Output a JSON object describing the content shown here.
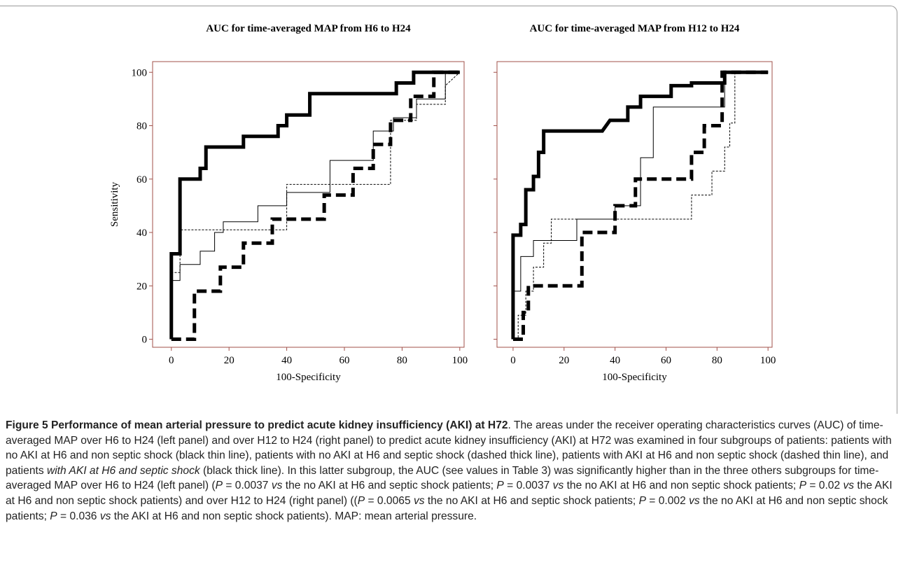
{
  "chart_data": [
    {
      "type": "line",
      "title": "AUC for time-averaged MAP from H6 to H24",
      "xlabel": "100-Specificity",
      "ylabel": "Sensitivity",
      "xlim": [
        -6.5,
        101.5
      ],
      "ylim": [
        -3,
        104
      ],
      "xticks": [
        0,
        20,
        40,
        60,
        80,
        100
      ],
      "yticks": [
        0,
        20,
        40,
        60,
        80,
        100
      ],
      "ytick_labels": true,
      "frame_color": "#a0504a",
      "series": [
        {
          "color": "#000000",
          "width": 5,
          "dash": false,
          "x": [
            0,
            0,
            3,
            3,
            10,
            10,
            12,
            12,
            25,
            25,
            37,
            37,
            40,
            40,
            48,
            48,
            78,
            78,
            84,
            84,
            100
          ],
          "values": [
            0,
            32,
            32,
            60,
            60,
            64,
            64,
            72,
            72,
            76,
            76,
            80,
            80,
            84,
            84,
            92,
            92,
            96,
            96,
            100,
            100
          ]
        },
        {
          "color": "#000000",
          "width": 1,
          "dash": false,
          "x": [
            0,
            0,
            3,
            3,
            10,
            10,
            15,
            15,
            18,
            18,
            30,
            30,
            40,
            40,
            55,
            55,
            70,
            70,
            77,
            77,
            85,
            85,
            95,
            95,
            100
          ],
          "values": [
            0,
            22,
            22,
            28,
            28,
            33,
            33,
            40,
            40,
            44,
            44,
            50,
            50,
            55,
            55,
            67,
            67,
            78,
            78,
            83,
            83,
            90,
            90,
            100,
            100
          ]
        },
        {
          "color": "#000000",
          "width": 1,
          "dash": true,
          "x": [
            0,
            0,
            3,
            3,
            40,
            40,
            76,
            76,
            85,
            85,
            95,
            95,
            100
          ],
          "values": [
            0,
            25,
            25,
            41,
            41,
            58,
            58,
            82,
            82,
            88,
            88,
            95,
            100
          ]
        },
        {
          "color": "#000000",
          "width": 5,
          "dash": true,
          "x": [
            0,
            8,
            8,
            17,
            17,
            25,
            25,
            35,
            35,
            53,
            53,
            63,
            63,
            70,
            70,
            76,
            76,
            83,
            83,
            91,
            91,
            100
          ],
          "values": [
            0,
            0,
            18,
            18,
            27,
            27,
            36,
            36,
            45,
            45,
            54,
            54,
            64,
            64,
            73,
            73,
            82,
            82,
            91,
            91,
            100,
            100
          ]
        }
      ]
    },
    {
      "type": "line",
      "title": "AUC for time-averaged MAP from H12 to H24",
      "xlabel": "100-Specificity",
      "xlim": [
        -6.3,
        101.6
      ],
      "ylim": [
        -3,
        104
      ],
      "xticks": [
        0,
        20,
        40,
        60,
        80,
        100
      ],
      "yticks": [
        0,
        20,
        40,
        60,
        80,
        100
      ],
      "ytick_labels": false,
      "frame_color": "#a0504a",
      "series": [
        {
          "color": "#000000",
          "width": 5,
          "dash": false,
          "x": [
            0,
            0,
            3,
            3,
            5,
            5,
            8,
            8,
            10,
            10,
            12,
            12,
            35,
            38,
            45,
            45,
            50,
            50,
            62,
            62,
            70,
            70,
            83,
            83,
            100
          ],
          "values": [
            0,
            39,
            39,
            43,
            43,
            56,
            56,
            61,
            61,
            70,
            70,
            78,
            78,
            82,
            82,
            87,
            87,
            91,
            91,
            95,
            95,
            96,
            96,
            100,
            100
          ]
        },
        {
          "color": "#000000",
          "width": 1,
          "dash": false,
          "x": [
            0,
            0,
            3,
            3,
            8,
            8,
            25,
            25,
            40,
            40,
            50,
            50,
            55,
            55,
            70,
            70,
            83,
            83,
            100
          ],
          "values": [
            0,
            18,
            18,
            31,
            31,
            37,
            37,
            45,
            45,
            50,
            50,
            68,
            68,
            87,
            87,
            87,
            87,
            100,
            100
          ]
        },
        {
          "color": "#000000",
          "width": 1,
          "dash": true,
          "x": [
            0,
            2,
            2,
            5,
            5,
            8,
            8,
            12,
            12,
            15,
            15,
            70,
            70,
            78,
            78,
            83,
            83,
            85,
            85,
            87,
            87,
            100
          ],
          "values": [
            0,
            0,
            9,
            9,
            18,
            18,
            27,
            27,
            36,
            36,
            45,
            45,
            54,
            54,
            63,
            63,
            72,
            72,
            81,
            81,
            100,
            100
          ]
        },
        {
          "color": "#000000",
          "width": 5,
          "dash": true,
          "x": [
            0,
            4,
            4,
            6,
            6,
            27,
            27,
            40,
            40,
            48,
            48,
            70,
            70,
            75,
            75,
            82,
            82,
            100
          ],
          "values": [
            0,
            0,
            10,
            10,
            20,
            20,
            40,
            40,
            50,
            50,
            60,
            60,
            70,
            70,
            80,
            80,
            100,
            100
          ]
        }
      ]
    }
  ],
  "caption": {
    "title": "Figure 5 Performance of mean arterial pressure to predict acute kidney insufficiency (AKI) at H72",
    "parts": [
      {
        "text": ". The areas under the receiver operating characteristics curves (AUC) of time-averaged MAP over H6 to H24 (left panel) and over H12 to H24 (right panel) to predict acute kidney insufficiency (AKI) at H72 was examined in four subgroups of patients: patients with no AKI at H6 and non septic shock (black thin line), patients with no AKI at H6 and septic shock (dashed thick line), patients with AKI at H6 and non septic shock (dashed thin line), and patients ",
        "italic": false
      },
      {
        "text": "with AKI at H6 and septic shock",
        "italic": true
      },
      {
        "text": " (black thick line). In this latter subgroup, the AUC (see values in Table 3) was significantly higher than in the three others subgroups for time-averaged MAP over H6 to H24 (left panel) (",
        "italic": false
      },
      {
        "text": "P",
        "italic": true
      },
      {
        "text": " = 0.0037 ",
        "italic": false
      },
      {
        "text": "vs",
        "italic": true
      },
      {
        "text": " the no AKI at H6 and septic shock patients; ",
        "italic": false
      },
      {
        "text": "P",
        "italic": true
      },
      {
        "text": " = 0.0037 ",
        "italic": false
      },
      {
        "text": "vs",
        "italic": true
      },
      {
        "text": " the no AKI at H6 and non septic shock patients; ",
        "italic": false
      },
      {
        "text": "P",
        "italic": true
      },
      {
        "text": " = 0.02 ",
        "italic": false
      },
      {
        "text": "vs",
        "italic": true
      },
      {
        "text": " the AKI at H6 and non septic shock patients) and over H12 to H24 (right panel) ((",
        "italic": false
      },
      {
        "text": "P",
        "italic": true
      },
      {
        "text": " = 0.0065 ",
        "italic": false
      },
      {
        "text": "vs",
        "italic": true
      },
      {
        "text": " the no AKI at H6 and septic shock patients; ",
        "italic": false
      },
      {
        "text": "P",
        "italic": true
      },
      {
        "text": " = 0.002 ",
        "italic": false
      },
      {
        "text": "vs",
        "italic": true
      },
      {
        "text": " the no AKI at H6 and non septic shock patients; ",
        "italic": false
      },
      {
        "text": "P",
        "italic": true
      },
      {
        "text": " = 0.036 ",
        "italic": false
      },
      {
        "text": "vs",
        "italic": true
      },
      {
        "text": " the AKI at H6 and non septic shock patients). MAP: mean arterial pressure.",
        "italic": false
      }
    ]
  }
}
